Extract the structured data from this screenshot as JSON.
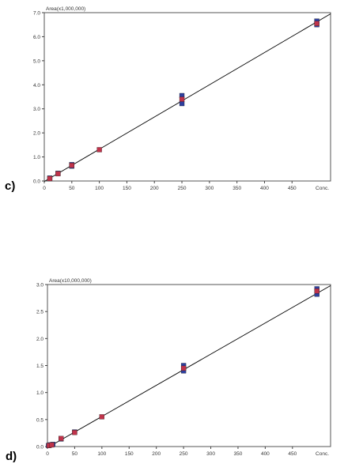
{
  "panels": [
    {
      "label": "c)",
      "chart_data": {
        "type": "scatter",
        "ylabel": "Area(x1,000,000)",
        "xlabel": "Conc.",
        "xlim": [
          0,
          520
        ],
        "ylim": [
          0,
          7.0
        ],
        "xticks": [
          0,
          50,
          100,
          150,
          200,
          250,
          300,
          350,
          400,
          450
        ],
        "xtick_labels": [
          "0",
          "50",
          "100",
          "150",
          "200",
          "250",
          "300",
          "350",
          "400",
          "450"
        ],
        "yticks": [
          0,
          1.0,
          2.0,
          3.0,
          4.0,
          5.0,
          6.0,
          7.0
        ],
        "ytick_labels": [
          "0.0",
          "1.0",
          "2.0",
          "3.0",
          "4.0",
          "5.0",
          "6.0",
          "7.0"
        ],
        "series": [
          {
            "points": [
              [
                10,
                0.12
              ],
              [
                25,
                0.32
              ],
              [
                50,
                0.62
              ],
              [
                50,
                0.68
              ],
              [
                250,
                3.22
              ],
              [
                250,
                3.55
              ],
              [
                495,
                6.5
              ],
              [
                495,
                6.65
              ]
            ],
            "color": "#2e3f9e",
            "marker": "square"
          },
          {
            "points": [
              [
                10,
                0.1
              ],
              [
                25,
                0.3
              ],
              [
                50,
                0.65
              ],
              [
                100,
                1.3
              ],
              [
                250,
                3.4
              ],
              [
                495,
                6.55
              ]
            ],
            "color": "#c0334a",
            "marker": "square"
          }
        ],
        "fit_line": {
          "x": [
            0,
            520
          ],
          "y": [
            -0.02,
            6.95
          ],
          "color": "#000000"
        }
      }
    },
    {
      "label": "d)",
      "chart_data": {
        "type": "scatter",
        "ylabel": "Area(x10,000,000)",
        "xlabel": "Conc.",
        "xlim": [
          0,
          520
        ],
        "ylim": [
          0,
          3.0
        ],
        "xticks": [
          0,
          50,
          100,
          150,
          200,
          250,
          300,
          350,
          400,
          450
        ],
        "xtick_labels": [
          "0",
          "50",
          "100",
          "150",
          "200",
          "250",
          "300",
          "350",
          "400",
          "450"
        ],
        "yticks": [
          0,
          0.5,
          1.0,
          1.5,
          2.0,
          2.5,
          3.0
        ],
        "ytick_labels": [
          "0.0",
          "0.5",
          "1.0",
          "1.5",
          "2.0",
          "2.5",
          "3.0"
        ],
        "series": [
          {
            "points": [
              [
                2,
                0.02
              ],
              [
                5,
                0.03
              ],
              [
                10,
                0.04
              ],
              [
                25,
                0.14
              ],
              [
                50,
                0.27
              ],
              [
                250,
                1.4
              ],
              [
                250,
                1.5
              ],
              [
                495,
                2.82
              ],
              [
                495,
                2.92
              ]
            ],
            "color": "#2e3f9e",
            "marker": "square"
          },
          {
            "points": [
              [
                3,
                0.02
              ],
              [
                8,
                0.03
              ],
              [
                25,
                0.15
              ],
              [
                50,
                0.26
              ],
              [
                100,
                0.55
              ],
              [
                250,
                1.45
              ],
              [
                495,
                2.88
              ]
            ],
            "color": "#c0334a",
            "marker": "square"
          }
        ],
        "fit_line": {
          "x": [
            0,
            520
          ],
          "y": [
            -0.02,
            2.98
          ],
          "color": "#000000"
        }
      }
    }
  ]
}
